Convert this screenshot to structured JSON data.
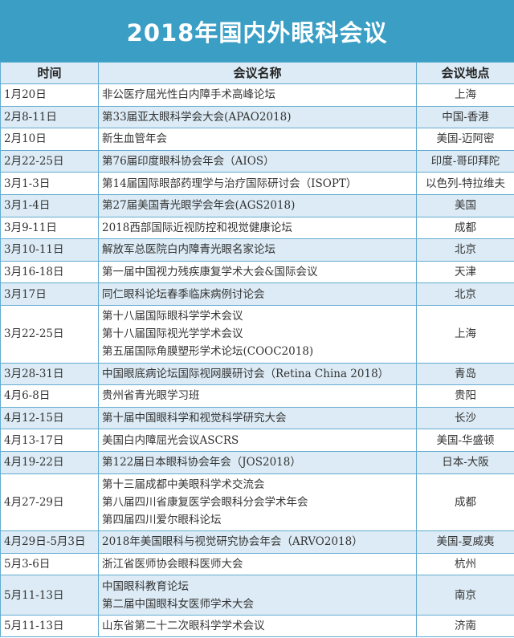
{
  "title": "2018年国内外眼科会议",
  "colors": {
    "title_bg": "#3b9fc5",
    "row_alt": "#dcebf5",
    "border": "#62abd0"
  },
  "headers": [
    "时间",
    "会议名称",
    "会议地点"
  ],
  "rows": [
    {
      "date": "1月20日",
      "names": [
        "非公医疗屈光性白内障手术高峰论坛"
      ],
      "place": "上海"
    },
    {
      "date": "2月8-11日",
      "names": [
        "第33届亚太眼科学会大会(APAO2018)"
      ],
      "place": "中国-香港"
    },
    {
      "date": "2月10日",
      "names": [
        "新生血管年会"
      ],
      "place": "美国-迈阿密"
    },
    {
      "date": "2月22-25日",
      "names": [
        "第76届印度眼科协会年会（AIOS）"
      ],
      "place": "印度-哥印拜陀"
    },
    {
      "date": "3月1-3日",
      "names": [
        "第14届国际眼部药理学与治疗国际研讨会（ISOPT）"
      ],
      "place": "以色列-特拉维夫"
    },
    {
      "date": "3月1-4日",
      "names": [
        "第27届美国青光眼学会年会(AGS2018)"
      ],
      "place": "美国"
    },
    {
      "date": "3月9-11日",
      "names": [
        "2018西部国际近视防控和视觉健康论坛"
      ],
      "place": "成都"
    },
    {
      "date": "3月10-11日",
      "names": [
        "解放军总医院白内障青光眼名家论坛"
      ],
      "place": "北京"
    },
    {
      "date": "3月16-18日",
      "names": [
        "第一届中国视力残疾康复学术大会&国际会议"
      ],
      "place": "天津"
    },
    {
      "date": "3月17日",
      "names": [
        "同仁眼科论坛春季临床病例讨论会"
      ],
      "place": "北京"
    },
    {
      "date": "3月22-25日",
      "names": [
        "第十八届国际眼科学学术会议",
        "第十八届国际视光学学术会议",
        "第五届国际角膜塑形学术论坛(COOC2018)"
      ],
      "place": "上海"
    },
    {
      "date": "3月28-31日",
      "names": [
        "中国眼底病论坛国际视网膜研讨会（Retina China 2018）"
      ],
      "place": "青岛"
    },
    {
      "date": "4月6-8日",
      "names": [
        "贵州省青光眼学习班"
      ],
      "place": "贵阳"
    },
    {
      "date": "4月12-15日",
      "names": [
        "第十届中国眼科学和视觉科学研究大会"
      ],
      "place": "长沙"
    },
    {
      "date": "4月13-17日",
      "names": [
        "美国白内障屈光会议ASCRS"
      ],
      "place": "美国-华盛顿"
    },
    {
      "date": "4月19-22日",
      "names": [
        "第122届日本眼科协会年会（JOS2018）"
      ],
      "place": "日本-大阪"
    },
    {
      "date": "4月27-29日",
      "names": [
        "第十三届成都中美眼科学术交流会",
        "第八届四川省康复医学会眼科分会学术年会",
        "第四届四川爱尔眼科论坛"
      ],
      "place": "成都"
    },
    {
      "date": "4月29日-5月3日",
      "names": [
        "2018年美国眼科与视觉研究协会年会（ARVO2018）"
      ],
      "place": "美国-夏威夷"
    },
    {
      "date": "5月3-6日",
      "names": [
        "浙江省医师协会眼科医师大会"
      ],
      "place": "杭州"
    },
    {
      "date": "5月11-13日",
      "names": [
        "中国眼科教育论坛",
        "第二届中国眼科女医师学术大会"
      ],
      "place": "南京"
    },
    {
      "date": "5月11-13日",
      "names": [
        "山东省第二十二次眼科学学术会议"
      ],
      "place": "济南"
    }
  ]
}
